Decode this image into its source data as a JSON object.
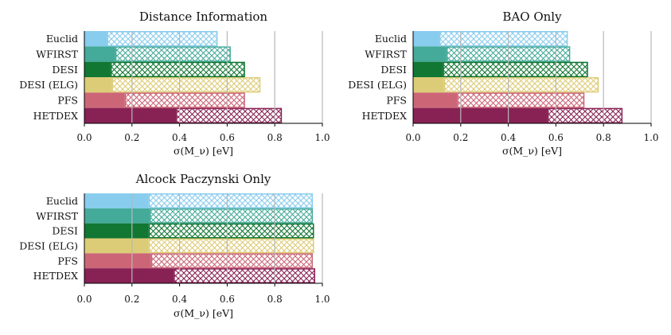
{
  "figure": {
    "colors": {
      "Euclid": "#88CCEE",
      "WFIRST": "#44AA99",
      "DESI": "#117733",
      "DESI (ELG)": "#DDCC77",
      "PFS": "#CC6677",
      "HETDEX": "#882255"
    }
  },
  "chart_data": [
    {
      "type": "bar",
      "orientation": "horizontal",
      "stacked": true,
      "title": "Distance Information",
      "xlabel": "σ(M_ν) [eV]",
      "xlim": [
        0,
        1.0
      ],
      "xticks": [
        "0.0",
        "0.2",
        "0.4",
        "0.6",
        "0.8",
        "1.0"
      ],
      "grid": "vertical",
      "categories": [
        "Euclid",
        "WFIRST",
        "DESI",
        "DESI (ELG)",
        "PFS",
        "HETDEX"
      ],
      "series": [
        {
          "name": "solid",
          "values": [
            0.095,
            0.13,
            0.11,
            0.115,
            0.17,
            0.385
          ]
        },
        {
          "name": "hatched",
          "values": [
            0.465,
            0.485,
            0.565,
            0.625,
            0.505,
            0.445
          ]
        }
      ],
      "totals": [
        0.56,
        0.615,
        0.675,
        0.74,
        0.675,
        0.83
      ]
    },
    {
      "type": "bar",
      "orientation": "horizontal",
      "stacked": true,
      "title": "BAO Only",
      "xlabel": "σ(M_ν) [eV]",
      "xlim": [
        0,
        1.0
      ],
      "xticks": [
        "0.0",
        "0.2",
        "0.4",
        "0.6",
        "0.8",
        "1.0"
      ],
      "grid": "vertical",
      "categories": [
        "Euclid",
        "WFIRST",
        "DESI",
        "DESI (ELG)",
        "PFS",
        "HETDEX"
      ],
      "series": [
        {
          "name": "solid",
          "values": [
            0.11,
            0.14,
            0.125,
            0.13,
            0.185,
            0.565
          ]
        },
        {
          "name": "hatched",
          "values": [
            0.54,
            0.52,
            0.61,
            0.65,
            0.535,
            0.315
          ]
        }
      ],
      "totals": [
        0.65,
        0.66,
        0.735,
        0.78,
        0.72,
        0.88
      ]
    },
    {
      "type": "bar",
      "orientation": "horizontal",
      "stacked": true,
      "title": "Alcock Paczynski Only",
      "xlabel": "σ(M_ν) [eV]",
      "xlim": [
        0,
        1.0
      ],
      "xticks": [
        "0.0",
        "0.2",
        "0.4",
        "0.6",
        "0.8",
        "1.0"
      ],
      "grid": "vertical",
      "categories": [
        "Euclid",
        "WFIRST",
        "DESI",
        "DESI (ELG)",
        "PFS",
        "HETDEX"
      ],
      "series": [
        {
          "name": "solid",
          "values": [
            0.27,
            0.275,
            0.27,
            0.27,
            0.28,
            0.375
          ]
        },
        {
          "name": "hatched",
          "values": [
            0.69,
            0.685,
            0.695,
            0.695,
            0.68,
            0.595
          ]
        }
      ],
      "totals": [
        0.96,
        0.96,
        0.965,
        0.965,
        0.96,
        0.97
      ]
    }
  ]
}
